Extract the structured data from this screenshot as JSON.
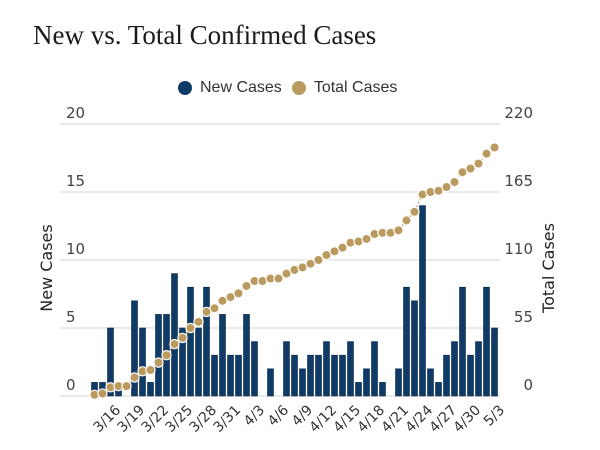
{
  "chart_data": {
    "type": "bar",
    "title": "New vs. Total Confirmed Cases",
    "legend": [
      {
        "name": "New Cases",
        "color": "#0f3b66"
      },
      {
        "name": "Total Cases",
        "color": "#bb9a5f"
      }
    ],
    "legend_position": "top-center",
    "ylabel_left": "New Cases",
    "ylabel_right": "Total Cases",
    "ylim_left": [
      0,
      20
    ],
    "ylim_right": [
      0,
      220
    ],
    "yticks_left": [
      "0",
      "5",
      "10",
      "15",
      "20"
    ],
    "yticks_right": [
      "0",
      "55",
      "110",
      "165",
      "220"
    ],
    "grid": true,
    "x": [
      "3/14",
      "3/15",
      "3/16",
      "3/17",
      "3/18",
      "3/19",
      "3/20",
      "3/21",
      "3/22",
      "3/23",
      "3/24",
      "3/25",
      "3/26",
      "3/27",
      "3/28",
      "3/29",
      "3/30",
      "3/31",
      "4/1",
      "4/2",
      "4/3",
      "4/4",
      "4/5",
      "4/6",
      "4/7",
      "4/8",
      "4/9",
      "4/10",
      "4/11",
      "4/12",
      "4/13",
      "4/14",
      "4/15",
      "4/16",
      "4/17",
      "4/18",
      "4/19",
      "4/20",
      "4/21",
      "4/22",
      "4/23",
      "4/24",
      "4/25",
      "4/26",
      "4/27",
      "4/28",
      "4/29",
      "4/30",
      "5/1",
      "5/2",
      "5/3"
    ],
    "xtick_labels": [
      "3/16",
      "3/19",
      "3/22",
      "3/25",
      "3/28",
      "3/31",
      "4/3",
      "4/6",
      "4/9",
      "4/12",
      "4/15",
      "4/18",
      "4/21",
      "4/24",
      "4/27",
      "4/30",
      "5/3"
    ],
    "series": [
      {
        "name": "New Cases",
        "type": "bar",
        "axis": "left",
        "values": [
          1,
          1,
          5,
          1,
          0,
          7,
          5,
          1,
          6,
          6,
          9,
          5,
          8,
          5,
          8,
          3,
          6,
          3,
          3,
          6,
          4,
          0,
          2,
          0,
          4,
          3,
          2,
          3,
          3,
          4,
          3,
          3,
          4,
          1,
          2,
          4,
          1,
          0,
          2,
          8,
          7,
          14,
          2,
          1,
          3,
          4,
          8,
          3,
          4,
          8,
          5
        ]
      },
      {
        "name": "Total Cases",
        "type": "line",
        "axis": "right",
        "values": [
          1,
          2,
          7,
          8,
          8,
          15,
          20,
          21,
          27,
          33,
          42,
          47,
          55,
          60,
          68,
          71,
          77,
          80,
          83,
          89,
          93,
          93,
          95,
          95,
          99,
          102,
          104,
          107,
          110,
          114,
          117,
          120,
          124,
          125,
          127,
          131,
          132,
          132,
          134,
          142,
          149,
          163,
          165,
          166,
          169,
          173,
          181,
          184,
          188,
          196,
          201
        ]
      }
    ]
  }
}
